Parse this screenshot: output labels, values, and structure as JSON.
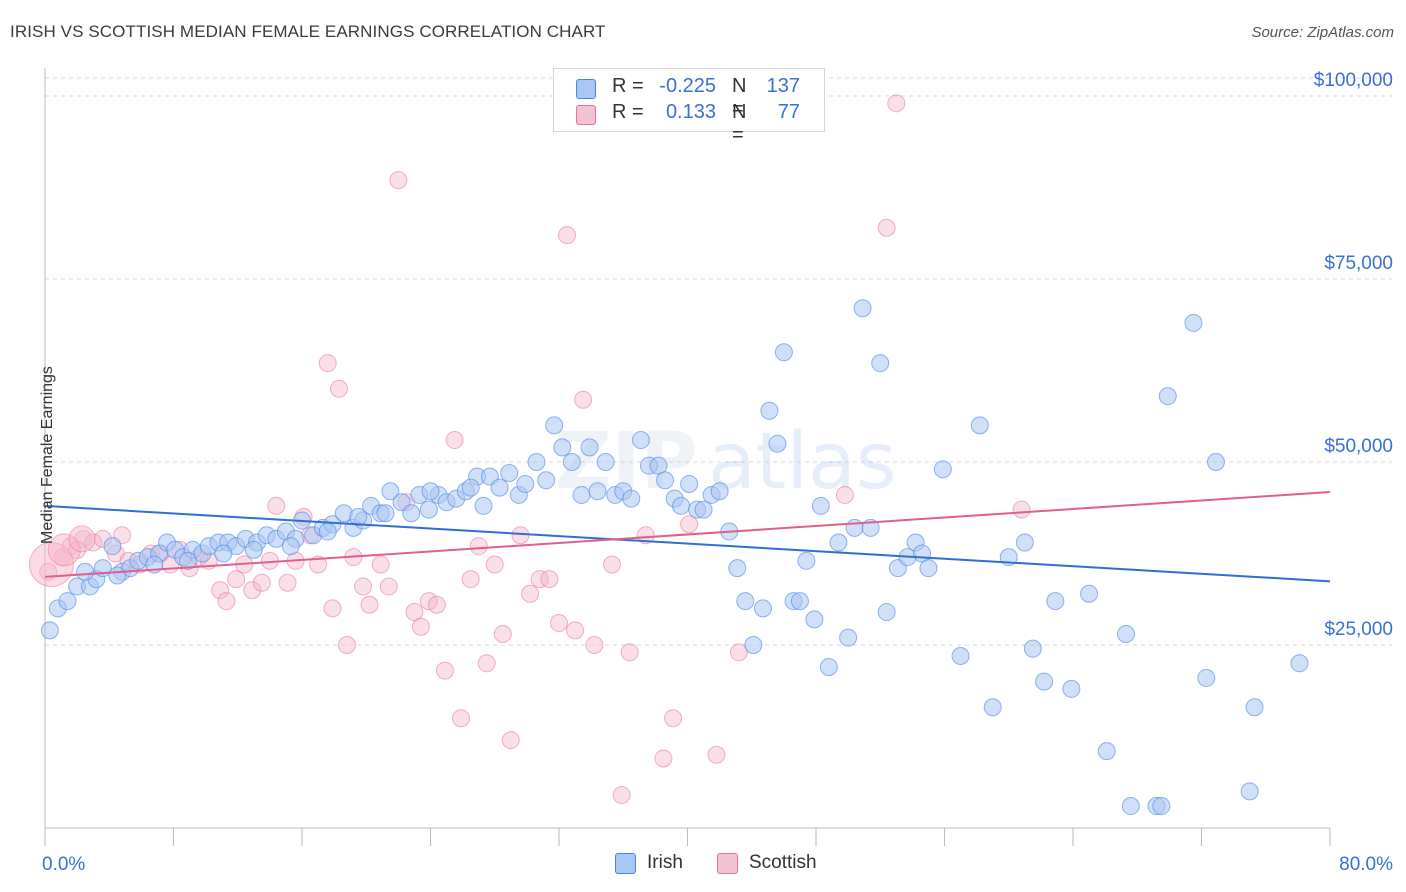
{
  "header": {
    "title": "IRISH VS SCOTTISH MEDIAN FEMALE EARNINGS CORRELATION CHART",
    "source": "Source: ZipAtlas.com"
  },
  "legend": {
    "irish": {
      "r_label": "R =",
      "r_value": "-0.225",
      "n_label": "N =",
      "n_value": "137"
    },
    "scottish": {
      "r_label": "R =",
      "r_value": "0.133",
      "n_label": "N =",
      "n_value": "77"
    }
  },
  "bottom_legend": {
    "irish": "Irish",
    "scottish": "Scottish"
  },
  "chart_data": {
    "type": "scatter",
    "title": "IRISH VS SCOTTISH MEDIAN FEMALE EARNINGS CORRELATION CHART",
    "ylabel": "Median Female Earnings",
    "xlabel": "",
    "xlim": [
      0,
      80
    ],
    "ylim": [
      0,
      102000
    ],
    "x_tick_labels": [
      "0.0%",
      "80.0%"
    ],
    "y_ticks": [
      25000,
      50000,
      75000,
      100000
    ],
    "y_tick_labels": [
      "$25,000",
      "$50,000",
      "$75,000",
      "$100,000"
    ],
    "grid": true,
    "legend_position": "top-center",
    "colors": {
      "irish": "#4a86e8",
      "irish_fill": "#a9c7f3",
      "scottish": "#e8729a",
      "scottish_fill": "#f5b8cc",
      "text_blue": "#3a6fd6"
    },
    "series": [
      {
        "name": "Irish",
        "trend": {
          "x": [
            0,
            80
          ],
          "y": [
            44000,
            33700
          ]
        },
        "points": [
          [
            0.3,
            27000
          ],
          [
            0.8,
            30000
          ],
          [
            1.4,
            31000
          ],
          [
            2.0,
            33000
          ],
          [
            2.8,
            33000
          ],
          [
            3.2,
            34000
          ],
          [
            3.6,
            35500
          ],
          [
            4.2,
            38500
          ],
          [
            4.8,
            35000
          ],
          [
            5.3,
            35500
          ],
          [
            5.8,
            36500
          ],
          [
            6.4,
            37000
          ],
          [
            7.1,
            37500
          ],
          [
            7.6,
            39000
          ],
          [
            8.1,
            38000
          ],
          [
            8.6,
            37000
          ],
          [
            9.2,
            38000
          ],
          [
            9.8,
            37500
          ],
          [
            10.2,
            38500
          ],
          [
            10.8,
            39000
          ],
          [
            11.4,
            39000
          ],
          [
            11.9,
            38500
          ],
          [
            12.5,
            39500
          ],
          [
            13.2,
            39000
          ],
          [
            13.8,
            40000
          ],
          [
            14.4,
            39500
          ],
          [
            15.0,
            40500
          ],
          [
            15.6,
            39500
          ],
          [
            16.0,
            42000
          ],
          [
            16.7,
            40000
          ],
          [
            17.3,
            41000
          ],
          [
            17.9,
            41500
          ],
          [
            18.6,
            43000
          ],
          [
            19.2,
            41000
          ],
          [
            19.8,
            42000
          ],
          [
            20.3,
            44000
          ],
          [
            20.9,
            43000
          ],
          [
            21.5,
            46000
          ],
          [
            22.2,
            44500
          ],
          [
            22.8,
            43000
          ],
          [
            23.3,
            45500
          ],
          [
            23.9,
            43500
          ],
          [
            24.5,
            45500
          ],
          [
            25.0,
            44500
          ],
          [
            25.6,
            45000
          ],
          [
            26.2,
            46000
          ],
          [
            26.9,
            48000
          ],
          [
            27.3,
            44000
          ],
          [
            27.7,
            48000
          ],
          [
            28.3,
            46500
          ],
          [
            28.9,
            48500
          ],
          [
            29.5,
            45500
          ],
          [
            29.9,
            47000
          ],
          [
            30.6,
            50000
          ],
          [
            31.2,
            47500
          ],
          [
            31.7,
            55000
          ],
          [
            32.2,
            52000
          ],
          [
            32.8,
            50000
          ],
          [
            33.4,
            45500
          ],
          [
            33.9,
            52000
          ],
          [
            34.4,
            46000
          ],
          [
            34.9,
            50000
          ],
          [
            35.5,
            45500
          ],
          [
            36.0,
            46000
          ],
          [
            36.5,
            45000
          ],
          [
            37.1,
            53000
          ],
          [
            37.6,
            49500
          ],
          [
            38.2,
            49500
          ],
          [
            38.6,
            47500
          ],
          [
            39.2,
            45000
          ],
          [
            39.6,
            44000
          ],
          [
            40.1,
            47000
          ],
          [
            40.6,
            43500
          ],
          [
            41.0,
            43500
          ],
          [
            41.5,
            45500
          ],
          [
            42.0,
            46000
          ],
          [
            42.6,
            40500
          ],
          [
            43.1,
            35500
          ],
          [
            43.6,
            31000
          ],
          [
            44.1,
            25000
          ],
          [
            44.7,
            30000
          ],
          [
            45.1,
            57000
          ],
          [
            45.6,
            52500
          ],
          [
            46.0,
            65000
          ],
          [
            46.6,
            31000
          ],
          [
            47.0,
            31000
          ],
          [
            47.4,
            36500
          ],
          [
            47.9,
            28500
          ],
          [
            48.3,
            44000
          ],
          [
            48.8,
            22000
          ],
          [
            49.4,
            39000
          ],
          [
            50.0,
            26000
          ],
          [
            50.4,
            41000
          ],
          [
            50.9,
            71000
          ],
          [
            51.4,
            41000
          ],
          [
            52.0,
            63500
          ],
          [
            52.4,
            29500
          ],
          [
            53.1,
            35500
          ],
          [
            53.7,
            37000
          ],
          [
            54.2,
            39000
          ],
          [
            54.6,
            37500
          ],
          [
            55.0,
            35500
          ],
          [
            55.9,
            49000
          ],
          [
            57.0,
            23500
          ],
          [
            58.2,
            55000
          ],
          [
            59.0,
            16500
          ],
          [
            60.0,
            37000
          ],
          [
            61.0,
            39000
          ],
          [
            61.5,
            24500
          ],
          [
            62.2,
            20000
          ],
          [
            62.9,
            31000
          ],
          [
            63.9,
            19000
          ],
          [
            65.0,
            32000
          ],
          [
            66.1,
            10500
          ],
          [
            67.3,
            26500
          ],
          [
            67.6,
            3000
          ],
          [
            69.2,
            3000
          ],
          [
            69.5,
            3000
          ],
          [
            69.9,
            59000
          ],
          [
            71.5,
            69000
          ],
          [
            72.3,
            20500
          ],
          [
            72.9,
            50000
          ],
          [
            75.0,
            5000
          ],
          [
            75.3,
            16500
          ],
          [
            78.1,
            22500
          ],
          [
            2.5,
            35000
          ],
          [
            4.5,
            34500
          ],
          [
            6.8,
            36000
          ],
          [
            8.9,
            36500
          ],
          [
            11.1,
            37500
          ],
          [
            13.0,
            38000
          ],
          [
            15.3,
            38500
          ],
          [
            17.6,
            40500
          ],
          [
            19.5,
            42500
          ],
          [
            21.2,
            43000
          ],
          [
            24.0,
            46000
          ],
          [
            26.5,
            46500
          ]
        ]
      },
      {
        "name": "Scottish",
        "trend": {
          "x": [
            0,
            80
          ],
          "y": [
            34300,
            45900
          ]
        },
        "points": [
          [
            0.2,
            35000
          ],
          [
            1.1,
            37000
          ],
          [
            1.6,
            38500
          ],
          [
            2.4,
            39500
          ],
          [
            3.0,
            39000
          ],
          [
            3.6,
            39500
          ],
          [
            4.4,
            37500
          ],
          [
            5.2,
            36500
          ],
          [
            5.9,
            36000
          ],
          [
            6.6,
            37500
          ],
          [
            7.2,
            37500
          ],
          [
            7.8,
            36000
          ],
          [
            8.4,
            38000
          ],
          [
            9.0,
            35500
          ],
          [
            9.6,
            37000
          ],
          [
            10.2,
            36500
          ],
          [
            10.9,
            32500
          ],
          [
            11.3,
            31000
          ],
          [
            11.9,
            34000
          ],
          [
            12.4,
            36000
          ],
          [
            12.9,
            32500
          ],
          [
            13.5,
            33500
          ],
          [
            14.0,
            36500
          ],
          [
            14.4,
            44000
          ],
          [
            15.1,
            33500
          ],
          [
            15.6,
            36500
          ],
          [
            16.1,
            42500
          ],
          [
            16.5,
            40000
          ],
          [
            17.0,
            36000
          ],
          [
            17.6,
            63500
          ],
          [
            17.9,
            30000
          ],
          [
            18.3,
            60000
          ],
          [
            18.8,
            25000
          ],
          [
            19.2,
            37000
          ],
          [
            19.8,
            33000
          ],
          [
            20.2,
            30500
          ],
          [
            20.9,
            36000
          ],
          [
            21.4,
            33000
          ],
          [
            22.0,
            88500
          ],
          [
            22.5,
            44500
          ],
          [
            23.0,
            29500
          ],
          [
            23.4,
            27500
          ],
          [
            23.9,
            31000
          ],
          [
            24.4,
            30500
          ],
          [
            24.9,
            21500
          ],
          [
            25.5,
            53000
          ],
          [
            25.9,
            15000
          ],
          [
            26.5,
            34000
          ],
          [
            27.0,
            38500
          ],
          [
            27.5,
            22500
          ],
          [
            28.0,
            36000
          ],
          [
            28.5,
            26500
          ],
          [
            29.0,
            12000
          ],
          [
            29.6,
            40000
          ],
          [
            30.2,
            32000
          ],
          [
            30.8,
            34000
          ],
          [
            31.4,
            34000
          ],
          [
            32.0,
            28000
          ],
          [
            32.5,
            81000
          ],
          [
            33.0,
            27000
          ],
          [
            33.5,
            58500
          ],
          [
            34.2,
            25000
          ],
          [
            35.3,
            36000
          ],
          [
            35.9,
            4500
          ],
          [
            36.4,
            24000
          ],
          [
            37.4,
            40000
          ],
          [
            38.5,
            9500
          ],
          [
            39.1,
            15000
          ],
          [
            40.1,
            41500
          ],
          [
            41.8,
            10000
          ],
          [
            43.2,
            24000
          ],
          [
            49.8,
            45500
          ],
          [
            52.4,
            82000
          ],
          [
            53.0,
            99000
          ],
          [
            60.8,
            43500
          ],
          [
            2.0,
            38000
          ],
          [
            4.8,
            40000
          ]
        ]
      }
    ]
  }
}
